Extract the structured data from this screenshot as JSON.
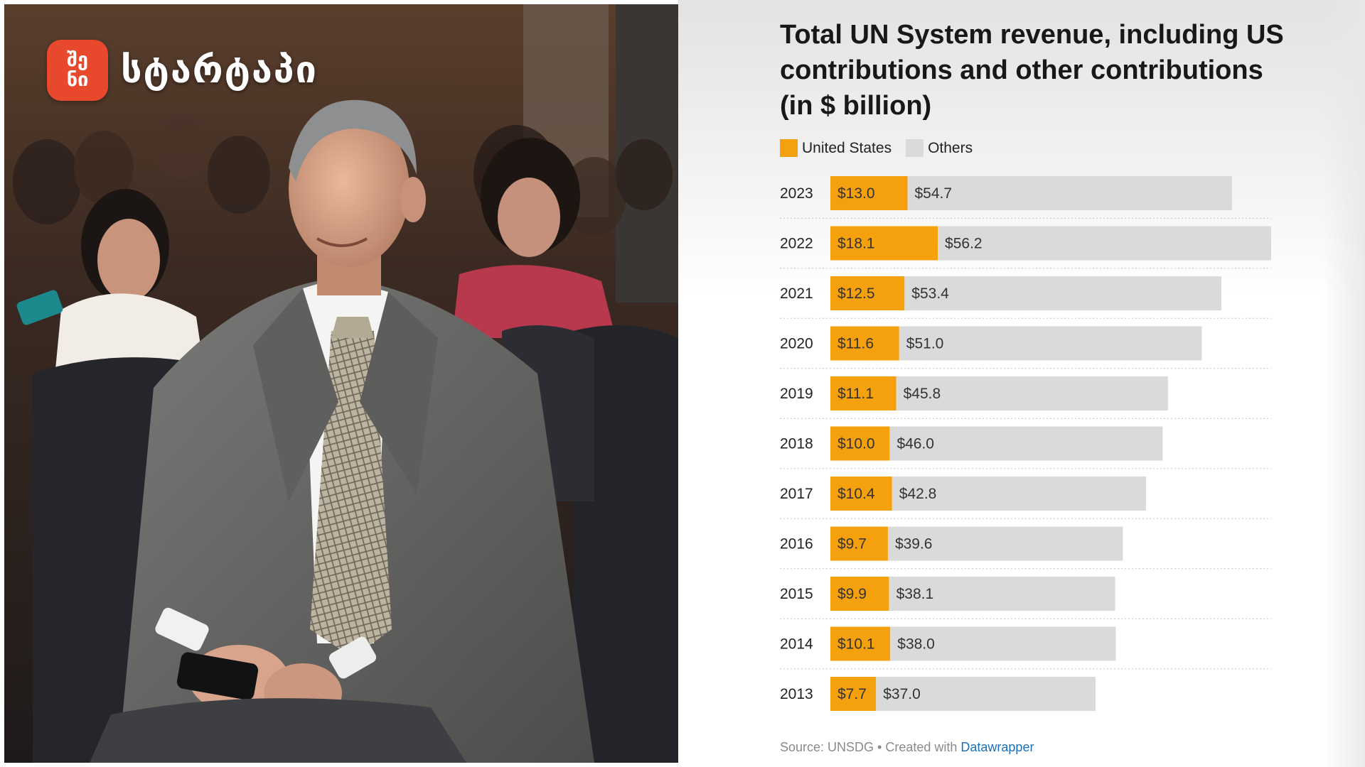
{
  "logo": {
    "badge_line1": "შე",
    "badge_line2": "ნი",
    "name": "სტარტაპი"
  },
  "colors": {
    "us": "#f5a00d",
    "others": "#dadada",
    "logo_red": "#e8492d",
    "link": "#1d6fb5"
  },
  "chart_data": {
    "type": "bar",
    "orientation": "horizontal",
    "stacked": true,
    "title": "Total UN System revenue, including US contributions and other contributions (in $ billion)",
    "legend_placement": "top-left",
    "categories": [
      "2023",
      "2022",
      "2021",
      "2020",
      "2019",
      "2018",
      "2017",
      "2016",
      "2015",
      "2014",
      "2013"
    ],
    "series": [
      {
        "name": "United States",
        "color": "#f5a00d",
        "values": [
          13.0,
          18.1,
          12.5,
          11.6,
          11.1,
          10.0,
          10.4,
          9.7,
          9.9,
          10.1,
          7.7
        ],
        "labels": [
          "$13.0",
          "$18.1",
          "$12.5",
          "$11.6",
          "$11.1",
          "$10.0",
          "$10.4",
          "$9.7",
          "$9.9",
          "$10.1",
          "$7.7"
        ]
      },
      {
        "name": "Others",
        "color": "#dadada",
        "values": [
          54.7,
          56.2,
          53.4,
          51.0,
          45.8,
          46.0,
          42.8,
          39.6,
          38.1,
          38.0,
          37.0
        ],
        "labels": [
          "$54.7",
          "$56.2",
          "$53.4",
          "$51.0",
          "$45.8",
          "$46.0",
          "$42.8",
          "$39.6",
          "$38.1",
          "$38.0",
          "$37.0"
        ]
      }
    ],
    "xlim": [
      0,
      74.3
    ],
    "grid": false
  },
  "source": {
    "text": "Source: UNSDG • Created with ",
    "link": "Datawrapper"
  }
}
